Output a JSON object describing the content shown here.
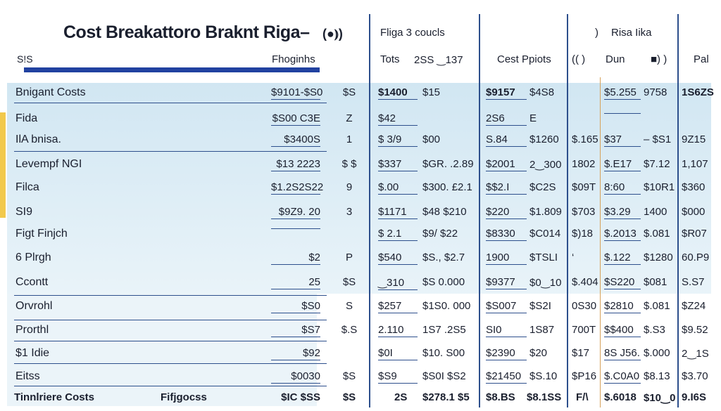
{
  "document": {
    "title": "Cost Breakattoro Braknt Riga–",
    "title_icon": "(●⦆)",
    "panel_headers": {
      "mid_header": "Fliga 3 coucls",
      "right_header": "Risa Iika",
      "bracket_left": ")",
      "sub_left": "S!S",
      "sub_fhoginhs": "Fhoginhs",
      "sub_tots": "Tots",
      "sub_tots_val": "2SS ‿137",
      "sub_cost_pplots": "Cest Ppiots",
      "sub_paren": "(( )",
      "sub_dun": "Dun",
      "sub_bar": "■) )",
      "sub_pal": "Pal"
    },
    "rows": [
      {
        "label": "Bnigant Costs",
        "c1": "$9101-$S0",
        "c2": "$S",
        "c3": "$1400",
        "c4": "$15",
        "c5": "$9157",
        "c6": "$4S8",
        "c7": "",
        "c8": "$5.255",
        "c9": "9758",
        "c10": "1S6ZS"
      },
      {
        "label": "Fida",
        "c1": "$S00 C3E",
        "c2": "Z",
        "c3": "$42",
        "c4": "",
        "c5": "2S6",
        "c6": "E",
        "c7": "",
        "c8": "",
        "c9": "",
        "c10": ""
      },
      {
        "label": "IlA bnisa.",
        "c1": "$3400S",
        "c2": "1",
        "c3": "$ 3/9",
        "c4": "$00",
        "c5": "S.84",
        "c6": "$1260",
        "c7": "$.165",
        "c8": "$37",
        "c9": "– $S1",
        "c10": "9Z15"
      },
      {
        "label": "Levempf NGI",
        "c1": "$13 2223",
        "c2": "$ $",
        "c3": "$337",
        "c4": "$GR. .2.89",
        "c5": "$2001",
        "c6": "2‿300",
        "c7": "1802",
        "c8": "$.E17",
        "c9": "$7.12",
        "c10": "1,107"
      },
      {
        "label": "Filca",
        "c1": "$1.2S2S22",
        "c2": "9",
        "c3": "$.00",
        "c4": "$300. £2.1",
        "c5": "$$2.I",
        "c6": "$C2S",
        "c7": "$09T",
        "c8": "8:60",
        "c9": "$10R1",
        "c10": "$360"
      },
      {
        "label": "SI9",
        "c1": "$9Z9. 20",
        "c2": "3",
        "c3": "$1171",
        "c4": "$48 $210",
        "c5": "$220",
        "c6": "$1.809",
        "c7": "$703",
        "c8": "$3.29",
        "c9": "1400",
        "c10": "$000"
      },
      {
        "label": "Figt Finjch",
        "c1": "",
        "c2": "",
        "c3": "$ 2.1",
        "c4": "$9/ $22",
        "c5": "$8330",
        "c6": "$C014",
        "c7": "$)18",
        "c8": "$.2013",
        "c9": "$.081",
        "c10": "$R07"
      },
      {
        "label": "6 Plrgh",
        "c1": "$2",
        "c2": "P",
        "c3": "$540",
        "c4": "$S., $2.7",
        "c5": "1900",
        "c6": "$TSLI",
        "c7": "‘",
        "c8": "$.122",
        "c9": "$1280",
        "c10": "60.P9"
      },
      {
        "label": "Ccontt",
        "c1": "25",
        "c2": "$S",
        "c3": "‿310",
        "c4": "$S 0.000",
        "c5": "$9377",
        "c6": "$0‿10",
        "c7": "$.404",
        "c8": "$S220",
        "c9": "$081",
        "c10": "S.S7"
      },
      {
        "label": "Orvrohl",
        "c1": "$S0",
        "c2": "S",
        "c3": "$257",
        "c4": "$1S0. 000",
        "c5": "$S007",
        "c6": "$S2I",
        "c7": "0S30",
        "c8": "$2810",
        "c9": "$.081",
        "c10": "$Z24"
      },
      {
        "label": "Prorthl",
        "c1": "$S7",
        "c2": "$.S",
        "c3": "2.110",
        "c4": "1S7 .2S5",
        "c5": "SI0",
        "c6": "1S87",
        "c7": "700T",
        "c8": "$$400",
        "c9": "$.S3",
        "c10": "$9.52"
      },
      {
        "label": "$1 Idie",
        "c1": "$92",
        "c2": "",
        "c3": "$0I",
        "c4": "$10. S00",
        "c5": "$2390",
        "c6": "$20",
        "c7": "$17",
        "c8": "8S J56.",
        "c9": "$.000",
        "c10": "2‿1S"
      },
      {
        "label": "Eitss",
        "c1": "$0030",
        "c2": "$S",
        "c3": "$S9",
        "c4": "$S0I $S2",
        "c5": "$21450",
        "c6": "$S.10",
        "c7": "$P16",
        "c8": "$.C0A0",
        "c9": "$8.13",
        "c10": "$3.70"
      }
    ],
    "footer": {
      "label": "Tinnlriere Costs",
      "sub": "Fifjgocss",
      "c1": "$IC $SS",
      "c2": "$S",
      "c3": "2S",
      "c4": "$278.1 $5",
      "c5": "$8.BS",
      "c6": "$8.1SS",
      "c7": "F/\\",
      "c8": "$.6018",
      "c9": "$10‿0",
      "c10": "9.I6S"
    }
  }
}
